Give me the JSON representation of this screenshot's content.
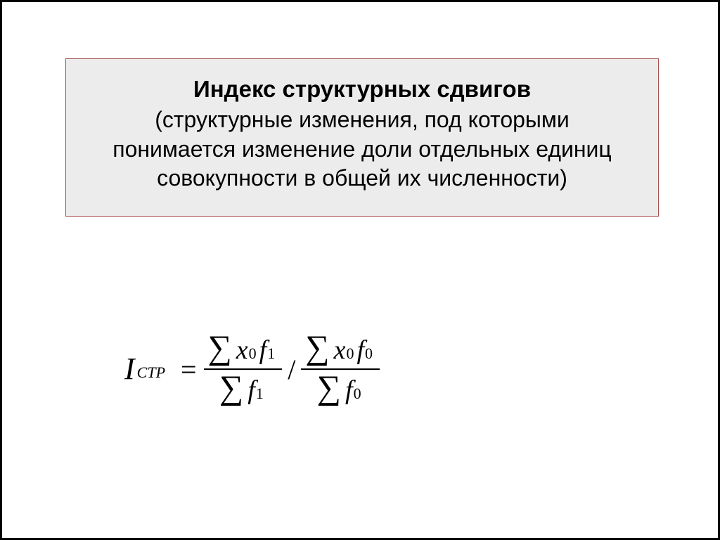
{
  "definition": {
    "title": "Индекс структурных сдвигов",
    "body": "(структурные изменения, под которыми понимается изменение доли отдельных единиц совокупности в общей их численности)"
  },
  "formula": {
    "lhs_symbol": "I",
    "lhs_subscript": "СТР",
    "equals": "=",
    "frac1": {
      "num_sigma": "∑",
      "num_x": "x",
      "num_x_sub": "0",
      "num_f": "f",
      "num_f_sub": "1",
      "den_sigma": "∑",
      "den_f": "f",
      "den_f_sub": "1"
    },
    "divider": "/",
    "frac2": {
      "num_sigma": "∑",
      "num_x": "x",
      "num_x_sub": "0",
      "num_f": "f",
      "num_f_sub": "0",
      "den_sigma": "∑",
      "den_f": "f",
      "den_f_sub": "0"
    }
  },
  "style": {
    "box_bg": "#ececec",
    "box_border": "#a85050",
    "text_color": "#000000",
    "page_bg": "#ffffff",
    "title_fontsize": 33,
    "body_fontsize": 32,
    "formula_font": "Times New Roman"
  }
}
